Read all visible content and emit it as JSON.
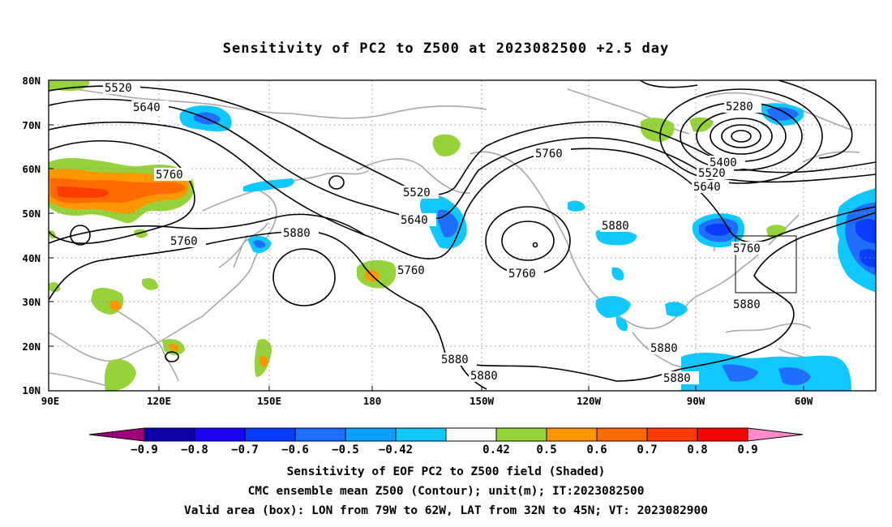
{
  "title": "Sensitivity of PC2 to Z500 at 2023082500 +2.5 day",
  "map": {
    "lat_labels": [
      "80N",
      "70N",
      "60N",
      "50N",
      "40N",
      "30N",
      "20N",
      "10N"
    ],
    "lon_labels": [
      "90E",
      "120E",
      "150E",
      "180",
      "150W",
      "120W",
      "90W",
      "60W"
    ],
    "contour_labels": [
      "5520",
      "5640",
      "5760",
      "5880",
      "5760",
      "5520",
      "5640",
      "5760",
      "5880",
      "5760",
      "5760",
      "5880",
      "5880",
      "5880",
      "5880",
      "5280",
      "5400",
      "5520",
      "5640",
      "5760",
      "5880",
      "5880"
    ],
    "box": {
      "lon_from": "79W",
      "lon_to": "62W",
      "lat_from": "32N",
      "lat_to": "45N"
    }
  },
  "colorbar": {
    "colors": [
      "#a0007a",
      "#0a00a8",
      "#1c00ff",
      "#0a3cff",
      "#1f6eff",
      "#0aa0ff",
      "#10c8ff",
      "#ffffff",
      "#96d23c",
      "#ff9800",
      "#ff6a00",
      "#ff3c00",
      "#ff0000",
      "#ff8cc8"
    ],
    "labels": [
      "−0.9",
      "−0.8",
      "−0.7",
      "−0.6",
      "−0.5",
      "−0.42",
      "0.42",
      "0.5",
      "0.6",
      "0.7",
      "0.8",
      "0.9"
    ]
  },
  "captions": [
    "Sensitivity of EOF PC2 to Z500 field (Shaded)",
    "CMC ensemble mean Z500 (Contour); unit(m); IT:2023082500",
    "Valid area (box): LON from 79W to 62W, LAT from 32N to 45N; VT: 2023082900"
  ]
}
